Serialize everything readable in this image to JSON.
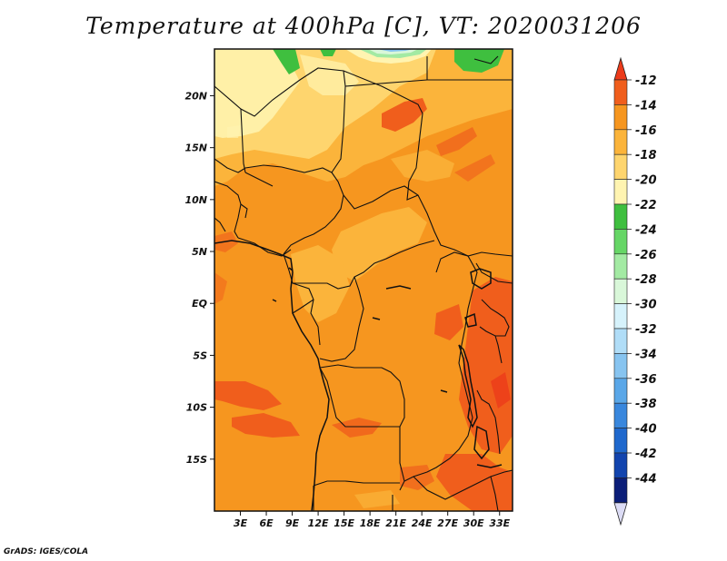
{
  "title": "Temperature at 400hPa [C], VT: 2020031206",
  "footer": "GrADS: IGES/COLA",
  "map": {
    "y_axis_labels": [
      "20N",
      "15N",
      "10N",
      "5N",
      "EQ",
      "5S",
      "10S",
      "15S"
    ],
    "y_axis_lats": [
      20,
      15,
      10,
      5,
      0,
      -5,
      -10,
      -15
    ],
    "x_axis_labels": [
      "3E",
      "6E",
      "9E",
      "12E",
      "15E",
      "18E",
      "21E",
      "24E",
      "27E",
      "30E",
      "33E"
    ],
    "x_axis_lons": [
      3,
      6,
      9,
      12,
      15,
      18,
      21,
      24,
      27,
      30,
      33
    ],
    "lon_range": [
      0,
      34.5
    ],
    "lat_range": [
      -20,
      24.5
    ]
  },
  "colorbar": {
    "labels": [
      "-12",
      "-14",
      "-16",
      "-18",
      "-20",
      "-22",
      "-24",
      "-26",
      "-28",
      "-30",
      "-32",
      "-34",
      "-36",
      "-38",
      "-40",
      "-42",
      "-44"
    ],
    "colors": [
      "#f05e1c",
      "#f6961f",
      "#fbb43b",
      "#fed56e",
      "#fff4b1",
      "#3fbf3f",
      "#66d666",
      "#a3eaa3",
      "#d9f7d9",
      "#d6f2fb",
      "#b0ddf7",
      "#87c4f0",
      "#5aa7e8",
      "#3987dd",
      "#1f68cd",
      "#1244ae",
      "#0b1e78"
    ],
    "upper_arrow_color": "#ec3b1a",
    "lower_arrow_color": "#dcdcf5"
  }
}
